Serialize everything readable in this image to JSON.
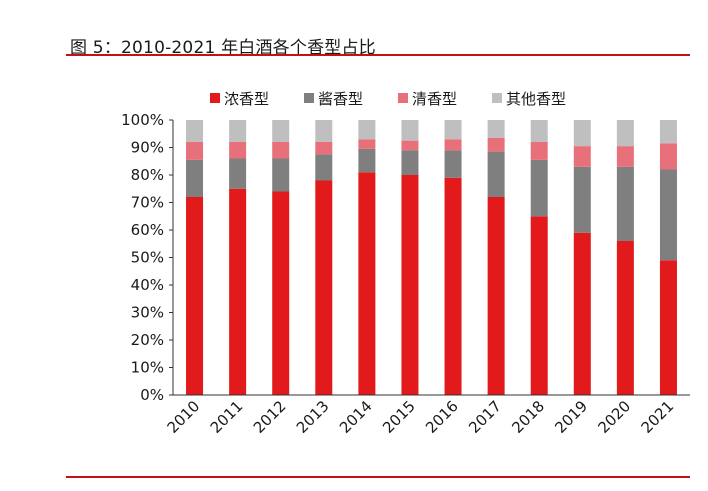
{
  "header": {
    "figure_title": "图 5：2010-2021 年白酒各个香型占比"
  },
  "chart_data": {
    "type": "bar",
    "stacked": true,
    "title": "",
    "xlabel": "",
    "ylabel": "",
    "ylim": [
      0,
      100
    ],
    "y_ticks": [
      "0%",
      "10%",
      "20%",
      "30%",
      "40%",
      "50%",
      "60%",
      "70%",
      "80%",
      "90%",
      "100%"
    ],
    "categories": [
      "2010",
      "2011",
      "2012",
      "2013",
      "2014",
      "2015",
      "2016",
      "2017",
      "2018",
      "2019",
      "2020",
      "2021"
    ],
    "series": [
      {
        "name": "浓香型",
        "color": "#e31a1c",
        "values": [
          72,
          75,
          74,
          78,
          81,
          80,
          79,
          72,
          65,
          59,
          56,
          49
        ]
      },
      {
        "name": "酱香型",
        "color": "#7f7f7f",
        "values": [
          13.5,
          11,
          12,
          9.5,
          8.5,
          9,
          10,
          16.5,
          20.5,
          24,
          27,
          33
        ]
      },
      {
        "name": "清香型",
        "color": "#e8707b",
        "values": [
          6.5,
          6,
          6,
          4.5,
          3.5,
          3.5,
          4,
          5,
          6.5,
          7.5,
          7.5,
          9.5
        ]
      },
      {
        "name": "其他香型",
        "color": "#bfbfbf",
        "values": [
          8,
          8,
          8,
          8,
          7,
          7.5,
          7,
          6.5,
          8,
          9.5,
          9.5,
          8.5
        ]
      }
    ],
    "legend_position": "top",
    "grid": false
  }
}
